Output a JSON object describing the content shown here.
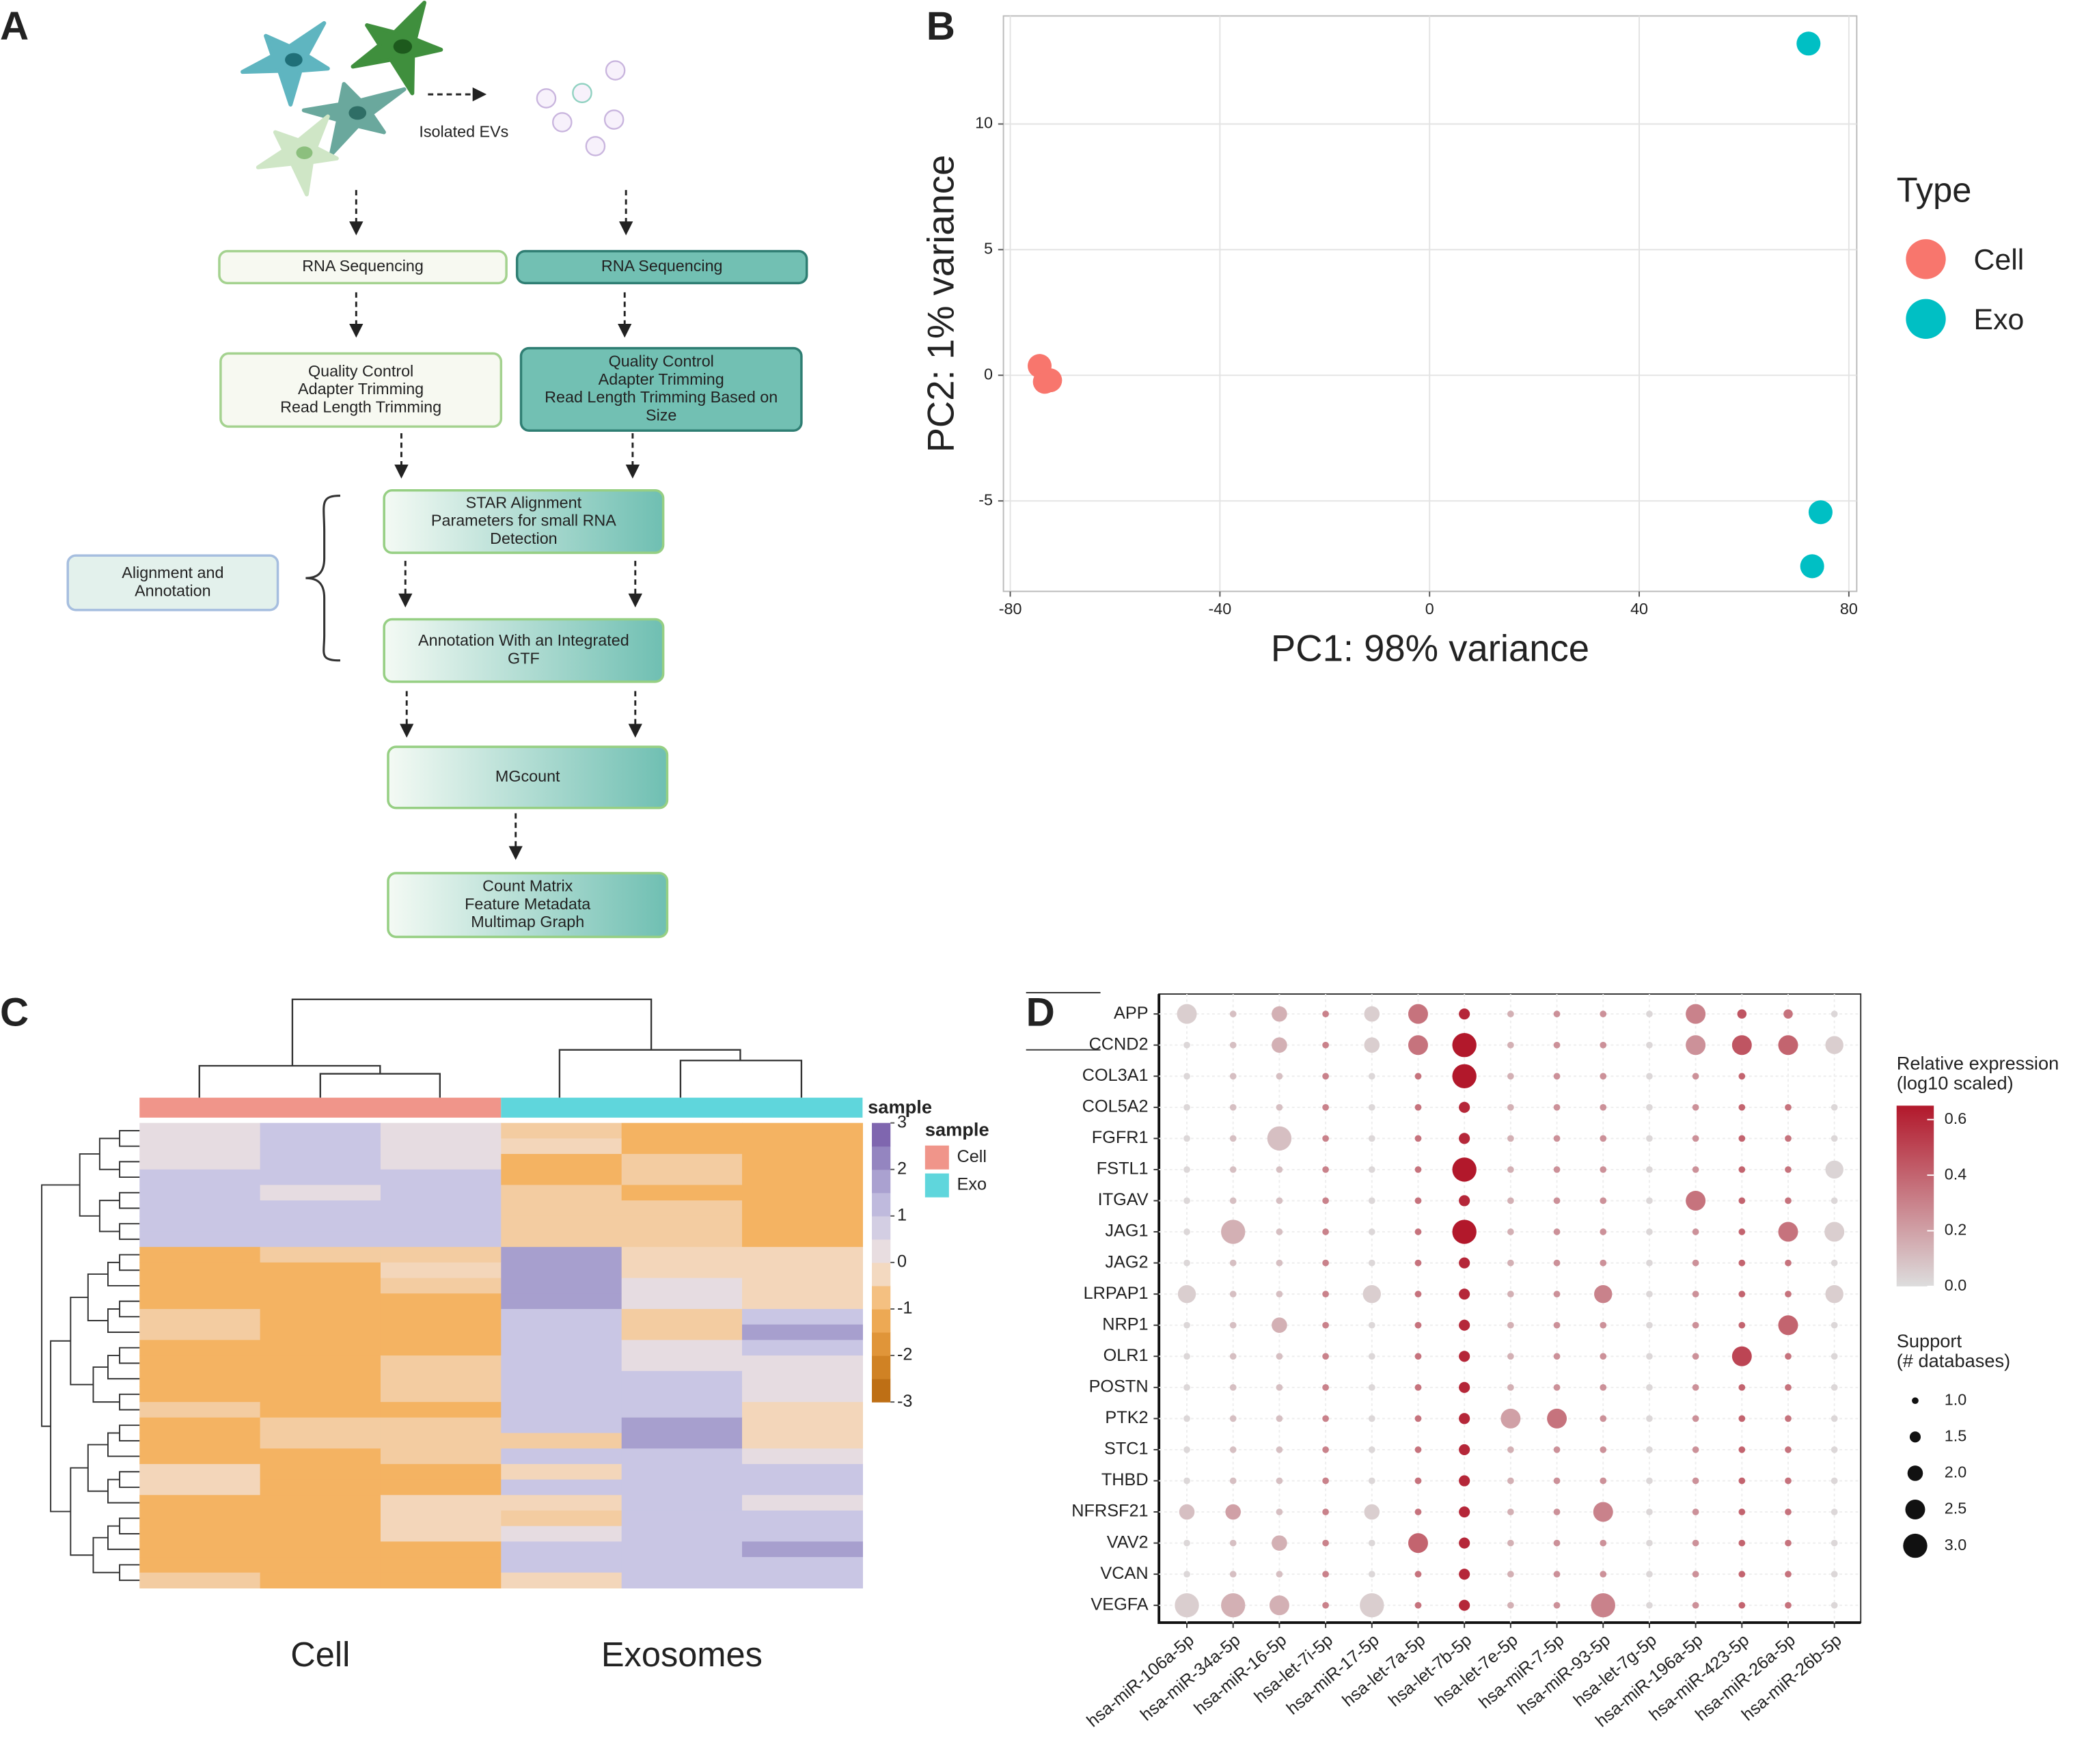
{
  "panel_labels": [
    "A",
    "B",
    "C",
    "D"
  ],
  "diagram": {
    "edge_label": "Isolated EVs",
    "nodes": [
      {
        "lines": [
          "RNA Sequencing"
        ]
      },
      {
        "lines": [
          "RNA Sequencing"
        ]
      },
      {
        "lines": [
          "Quality Control",
          "Adapter Trimming",
          "Read Length Trimming"
        ]
      },
      {
        "lines": [
          "Quality Control",
          "Adapter Trimming",
          "Read Length Trimming Based on",
          "Size"
        ]
      },
      {
        "lines": [
          "STAR Alignment",
          "Parameters for small RNA",
          "Detection"
        ]
      },
      {
        "lines": [
          "Alignment and",
          "Annotation"
        ]
      },
      {
        "lines": [
          "Annotation With an Integrated",
          "GTF"
        ]
      },
      {
        "lines": [
          "MGcount"
        ]
      },
      {
        "lines": [
          "Count Matrix",
          "Feature Metadata",
          "Multimap Graph"
        ]
      }
    ]
  },
  "chart_data": [
    {
      "type": "scatter",
      "xlabel": "PC1: 98% variance",
      "ylabel": "PC2: 1% variance",
      "legend_title": "Type",
      "xlim": [
        -81.3,
        81.5
      ],
      "ylim": [
        -8.6,
        14.3
      ],
      "xticks": [
        -80,
        -40,
        0,
        40,
        80
      ],
      "yticks": [
        -5,
        0,
        5,
        10
      ],
      "grid": true,
      "series": [
        {
          "name": "Cell",
          "color": "#f8766d",
          "x": [
            -74.4,
            -73.4,
            -72.4
          ],
          "values": [
            0.37,
            -0.26,
            -0.2
          ]
        },
        {
          "name": "Exo",
          "color": "#00bfc4",
          "x": [
            72.3,
            74.6,
            73.0
          ],
          "values": [
            13.2,
            -5.45,
            -7.6
          ]
        }
      ]
    },
    {
      "type": "heatmap",
      "group_labels": [
        "Cell",
        "Exosomes"
      ],
      "annotation_title": "sample",
      "annotation_legend": [
        {
          "name": "Cell",
          "color": "#f0958a"
        },
        {
          "name": "Exo",
          "color": "#5fd6dc"
        }
      ],
      "colorscale": [
        {
          "value": -3,
          "color": "#b5650d"
        },
        {
          "value": -2,
          "color": "#d98b2b"
        },
        {
          "value": -1,
          "color": "#f4b362"
        },
        {
          "value": 0,
          "color": "#f2e5df"
        },
        {
          "value": 1,
          "color": "#c9c6e4"
        },
        {
          "value": 2,
          "color": "#9f95c9"
        },
        {
          "value": 3,
          "color": "#7456a6"
        }
      ],
      "cticks": [
        3,
        2,
        1,
        0,
        -1,
        -2,
        -3
      ],
      "values": [
        [
          0.3,
          1,
          0.3,
          -0.5,
          -1,
          -1
        ],
        [
          0.3,
          1,
          0.3,
          -0.3,
          -1,
          -1
        ],
        [
          0.3,
          1,
          0.3,
          -1,
          -0.5,
          -1
        ],
        [
          1,
          1,
          1,
          -1,
          -0.5,
          -1
        ],
        [
          1,
          0.3,
          1,
          -0.5,
          -1,
          -1
        ],
        [
          1,
          1,
          1,
          -0.5,
          -0.5,
          -1
        ],
        [
          1,
          1,
          1,
          -0.5,
          -0.5,
          -1
        ],
        [
          1,
          1,
          1,
          -0.5,
          -0.5,
          -1
        ],
        [
          -1,
          -0.5,
          -0.5,
          1.8,
          -0.3,
          -0.3
        ],
        [
          -1,
          -1,
          -0.3,
          1.8,
          -0.3,
          -0.3
        ],
        [
          -1,
          -1,
          -0.5,
          1.8,
          0.3,
          -0.3
        ],
        [
          -1,
          -1,
          -1,
          1.8,
          0.3,
          -0.3
        ],
        [
          -0.5,
          -1,
          -1,
          1,
          -0.5,
          1
        ],
        [
          -0.5,
          -1,
          -1,
          1,
          -0.5,
          1.8
        ],
        [
          -1,
          -1,
          -1,
          1,
          0.3,
          1
        ],
        [
          -1,
          -1,
          -0.5,
          1,
          0.3,
          0.3
        ],
        [
          -1,
          -1,
          -0.5,
          1,
          1,
          0.3
        ],
        [
          -1,
          -1,
          -0.5,
          1,
          1,
          0.3
        ],
        [
          -0.5,
          -1,
          -1,
          1,
          1,
          -0.3
        ],
        [
          -1,
          -0.5,
          -0.5,
          1,
          1.8,
          -0.3
        ],
        [
          -1,
          -0.5,
          -0.5,
          -0.5,
          1.8,
          -0.3
        ],
        [
          -1,
          -1,
          -0.5,
          1,
          1,
          0.3
        ],
        [
          -0.3,
          -1,
          -1,
          -0.3,
          1,
          1
        ],
        [
          -0.3,
          -1,
          -1,
          1,
          1,
          1
        ],
        [
          -1,
          -1,
          -0.3,
          -0.3,
          1,
          0.3
        ],
        [
          -1,
          -1,
          -0.3,
          -0.5,
          1,
          1
        ],
        [
          -1,
          -1,
          -0.3,
          0.3,
          1,
          1
        ],
        [
          -1,
          -1,
          -1,
          1,
          1,
          1.8
        ],
        [
          -1,
          -1,
          -1,
          1,
          1,
          1
        ],
        [
          -0.5,
          -1,
          -1,
          -0.3,
          1,
          1
        ]
      ]
    },
    {
      "type": "dotplot",
      "categories": [
        "hsa-miR-106a-5p",
        "hsa-miR-34a-5p",
        "hsa-miR-16-5p",
        "hsa-let-7i-5p",
        "hsa-miR-17-5p",
        "hsa-let-7a-5p",
        "hsa-let-7b-5p",
        "hsa-let-7e-5p",
        "hsa-miR-7-5p",
        "hsa-miR-93-5p",
        "hsa-let-7g-5p",
        "hsa-miR-196a-5p",
        "hsa-miR-423-5p",
        "hsa-miR-26a-5p",
        "hsa-miR-26b-5p"
      ],
      "rows": [
        "APP",
        "CCND2",
        "COL3A1",
        "COL5A2",
        "FGFR1",
        "FSTL1",
        "ITGAV",
        "JAG1",
        "JAG2",
        "LRPAP1",
        "NRP1",
        "OLR1",
        "POSTN",
        "PTK2",
        "STC1",
        "THBD",
        "NFRSF21",
        "VAV2",
        "VCAN",
        "VEGFA"
      ],
      "expression": [
        [
          0.05,
          0.1,
          0.15,
          0.3,
          0.05,
          0.35,
          0.6,
          0.15,
          0.25,
          0.25,
          0.02,
          0.3,
          0.45,
          0.35,
          0.02
        ],
        [
          0.02,
          0.1,
          0.15,
          0.3,
          0.05,
          0.35,
          0.65,
          0.15,
          0.25,
          0.25,
          0.02,
          0.25,
          0.45,
          0.4,
          0.05
        ],
        [
          0.02,
          0.1,
          0.1,
          0.3,
          0.02,
          0.35,
          0.65,
          0.15,
          0.25,
          0.25,
          0.02,
          0.25,
          0.4,
          null,
          null
        ],
        [
          0.02,
          0.1,
          0.1,
          0.3,
          0.02,
          0.35,
          0.6,
          0.15,
          0.25,
          0.25,
          0.02,
          0.25,
          0.4,
          0.35,
          0.02
        ],
        [
          0.02,
          0.1,
          0.1,
          0.3,
          0.02,
          0.35,
          0.6,
          0.15,
          0.25,
          0.25,
          0.02,
          0.25,
          0.4,
          0.35,
          0.02
        ],
        [
          0.02,
          0.1,
          0.1,
          0.3,
          0.02,
          0.35,
          0.65,
          0.15,
          0.25,
          0.25,
          0.02,
          0.25,
          0.4,
          0.35,
          0.03
        ],
        [
          0.02,
          0.1,
          0.1,
          0.3,
          0.02,
          0.35,
          0.6,
          0.15,
          0.25,
          0.25,
          0.02,
          0.35,
          0.4,
          0.35,
          0.02
        ],
        [
          0.02,
          0.15,
          0.1,
          0.3,
          0.02,
          0.35,
          0.65,
          0.15,
          0.25,
          0.25,
          0.02,
          0.25,
          0.4,
          0.35,
          0.05
        ],
        [
          0.02,
          0.1,
          0.1,
          0.3,
          0.02,
          0.35,
          0.6,
          0.15,
          0.25,
          0.25,
          0.02,
          0.25,
          0.4,
          0.35,
          0.02
        ],
        [
          0.05,
          0.1,
          0.1,
          0.3,
          0.05,
          0.35,
          0.6,
          0.15,
          0.25,
          0.3,
          0.02,
          0.25,
          0.4,
          0.35,
          0.05
        ],
        [
          0.02,
          0.1,
          0.15,
          0.3,
          0.02,
          0.35,
          0.6,
          0.15,
          0.25,
          0.25,
          0.02,
          0.25,
          0.4,
          0.4,
          0.02
        ],
        [
          0.02,
          0.1,
          0.1,
          0.3,
          0.02,
          0.35,
          0.6,
          0.15,
          0.25,
          0.25,
          0.02,
          0.25,
          0.5,
          0.35,
          0.02
        ],
        [
          0.02,
          0.1,
          0.1,
          0.3,
          0.02,
          0.35,
          0.6,
          0.15,
          0.25,
          0.25,
          0.02,
          0.25,
          0.4,
          0.35,
          0.02
        ],
        [
          0.02,
          0.1,
          0.1,
          0.3,
          0.02,
          0.35,
          0.6,
          0.2,
          0.35,
          0.25,
          0.02,
          0.25,
          0.4,
          0.35,
          0.02
        ],
        [
          0.02,
          0.1,
          0.1,
          0.3,
          0.02,
          0.35,
          0.6,
          0.15,
          0.25,
          0.25,
          0.02,
          0.25,
          0.4,
          0.35,
          0.02
        ],
        [
          0.02,
          0.1,
          0.1,
          0.3,
          0.02,
          0.35,
          0.6,
          0.15,
          0.25,
          0.25,
          0.02,
          0.25,
          0.4,
          0.35,
          0.02
        ],
        [
          0.1,
          0.2,
          0.1,
          0.3,
          0.05,
          0.35,
          0.6,
          0.15,
          0.25,
          0.3,
          0.02,
          0.25,
          0.4,
          0.35,
          0.02
        ],
        [
          0.02,
          0.1,
          0.15,
          0.3,
          0.02,
          0.4,
          0.6,
          0.15,
          0.25,
          0.25,
          0.02,
          0.25,
          0.4,
          0.35,
          0.02
        ],
        [
          0.02,
          0.1,
          0.1,
          0.3,
          0.02,
          0.35,
          0.6,
          0.15,
          0.25,
          0.25,
          0.02,
          0.25,
          0.4,
          0.35,
          0.02
        ],
        [
          0.05,
          0.15,
          0.15,
          0.3,
          0.05,
          0.35,
          0.6,
          0.15,
          0.25,
          0.3,
          0.02,
          0.25,
          0.4,
          0.35,
          0.02
        ]
      ],
      "support": [
        [
          2.5,
          1,
          2,
          1,
          2,
          2.5,
          1.5,
          1,
          1,
          1,
          1,
          2.5,
          1.3,
          1.3,
          1
        ],
        [
          1,
          1,
          2,
          1,
          2,
          2.5,
          3,
          1,
          1,
          1,
          1,
          2.5,
          2.5,
          2.5,
          2.3
        ],
        [
          1,
          1,
          1,
          1,
          1,
          1,
          3,
          1,
          1,
          1,
          1,
          1,
          1,
          null,
          null
        ],
        [
          1,
          1,
          1,
          1,
          1,
          1,
          1.5,
          1,
          1,
          1,
          1,
          1,
          1,
          1,
          1
        ],
        [
          1,
          1,
          3,
          1,
          1,
          1,
          1.5,
          1,
          1,
          1,
          1,
          1,
          1,
          1,
          1
        ],
        [
          1,
          1,
          1,
          1,
          1,
          1,
          3,
          1,
          1,
          1,
          1,
          1,
          1,
          1,
          2.3
        ],
        [
          1,
          1,
          1,
          1,
          1,
          1,
          1.5,
          1,
          1,
          1,
          1,
          2.5,
          1,
          1,
          1
        ],
        [
          1,
          3,
          1,
          1,
          1,
          1,
          3,
          1,
          1,
          1,
          1,
          1,
          1,
          2.5,
          2.5
        ],
        [
          1,
          1,
          1,
          1,
          1,
          1,
          1.5,
          1,
          1,
          1,
          1,
          1,
          1,
          1,
          1
        ],
        [
          2.3,
          1,
          1,
          1,
          2.3,
          1,
          1.5,
          1,
          1,
          2.3,
          1,
          1,
          1,
          1,
          2.3
        ],
        [
          1,
          1,
          2,
          1,
          1,
          1,
          1.5,
          1,
          1,
          1,
          1,
          1,
          1,
          2.5,
          1
        ],
        [
          1,
          1,
          1,
          1,
          1,
          1,
          1.5,
          1,
          1,
          1,
          1,
          1,
          2.5,
          1,
          1
        ],
        [
          1,
          1,
          1,
          1,
          1,
          1,
          1.5,
          1,
          1,
          1,
          1,
          1,
          1,
          1,
          1
        ],
        [
          1,
          1,
          1,
          1,
          1,
          1,
          1.5,
          2.5,
          2.5,
          1,
          1,
          1,
          1,
          1,
          1
        ],
        [
          1,
          1,
          1,
          1,
          1,
          1,
          1.5,
          1,
          1,
          1,
          1,
          1,
          1,
          1,
          1
        ],
        [
          1,
          1,
          1,
          1,
          1,
          1,
          1.5,
          1,
          1,
          1,
          1,
          1,
          1,
          1,
          1
        ],
        [
          2,
          2,
          1,
          1,
          2,
          1,
          1.5,
          1,
          1,
          2.5,
          1,
          1,
          1,
          1,
          1
        ],
        [
          1,
          1,
          2,
          1,
          1,
          2.5,
          1.5,
          1,
          1,
          1,
          1,
          1,
          1,
          1,
          1
        ],
        [
          1,
          1,
          1,
          1,
          1,
          1,
          1.5,
          1,
          1,
          1,
          1,
          1,
          1,
          1,
          1
        ],
        [
          3,
          3,
          2.5,
          1,
          3,
          1,
          1.5,
          1,
          1,
          3,
          1,
          1,
          1,
          1,
          1
        ]
      ],
      "color_title": [
        "Relative expression",
        "(log10 scaled)"
      ],
      "color_lim": [
        0,
        0.65
      ],
      "colors": [
        "#dddddd",
        "#b2182b"
      ],
      "color_ticks": [
        {
          "value": 0,
          "label": "0.0"
        },
        0.2,
        0.4,
        0.6
      ],
      "size_title": [
        "Support",
        "(# databases)"
      ],
      "size_ticks": [
        {
          "value": 1,
          "label": "1.0"
        },
        1.5,
        {
          "value": 2,
          "label": "2.0"
        },
        2.5,
        {
          "value": 3,
          "label": "3.0"
        }
      ]
    }
  ]
}
